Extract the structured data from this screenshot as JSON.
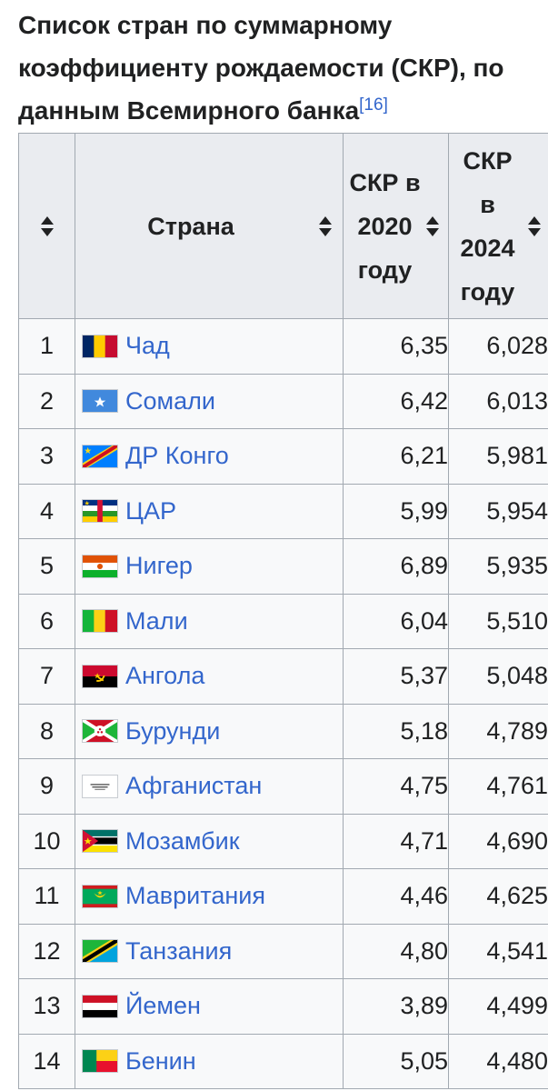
{
  "caption": {
    "title": "Список стран по суммарному коэффициенту рождаемости (СКР), по данным Всемирного банка",
    "ref": "[16]"
  },
  "table": {
    "headers": {
      "rank": "",
      "country": "Страна",
      "tfr2020": "СКР в 2020 году",
      "tfr2024": "СКР в 2024 году"
    },
    "rows": [
      {
        "rank": "1",
        "country": "Чад",
        "flag": "chad-flag",
        "tfr2020": "6,35",
        "tfr2024": "6,028"
      },
      {
        "rank": "2",
        "country": "Сомали",
        "flag": "somalia-flag",
        "tfr2020": "6,42",
        "tfr2024": "6,013"
      },
      {
        "rank": "3",
        "country": "ДР Конго",
        "flag": "dr-congo-flag",
        "tfr2020": "6,21",
        "tfr2024": "5,981"
      },
      {
        "rank": "4",
        "country": "ЦАР",
        "flag": "car-flag",
        "tfr2020": "5,99",
        "tfr2024": "5,954"
      },
      {
        "rank": "5",
        "country": "Нигер",
        "flag": "niger-flag",
        "tfr2020": "6,89",
        "tfr2024": "5,935"
      },
      {
        "rank": "6",
        "country": "Мали",
        "flag": "mali-flag",
        "tfr2020": "6,04",
        "tfr2024": "5,510"
      },
      {
        "rank": "7",
        "country": "Ангола",
        "flag": "angola-flag",
        "tfr2020": "5,37",
        "tfr2024": "5,048"
      },
      {
        "rank": "8",
        "country": "Бурунди",
        "flag": "burundi-flag",
        "tfr2020": "5,18",
        "tfr2024": "4,789"
      },
      {
        "rank": "9",
        "country": "Афганистан",
        "flag": "afghanistan-flag",
        "tfr2020": "4,75",
        "tfr2024": "4,761"
      },
      {
        "rank": "10",
        "country": "Мозамбик",
        "flag": "mozambique-flag",
        "tfr2020": "4,71",
        "tfr2024": "4,690"
      },
      {
        "rank": "11",
        "country": "Мавритания",
        "flag": "mauritania-flag",
        "tfr2020": "4,46",
        "tfr2024": "4,625"
      },
      {
        "rank": "12",
        "country": "Танзания",
        "flag": "tanzania-flag",
        "tfr2020": "4,80",
        "tfr2024": "4,541"
      },
      {
        "rank": "13",
        "country": "Йемен",
        "flag": "yemen-flag",
        "tfr2020": "3,89",
        "tfr2024": "4,499"
      },
      {
        "rank": "14",
        "country": "Бенин",
        "flag": "benin-flag",
        "tfr2020": "5,05",
        "tfr2024": "4,480"
      }
    ]
  },
  "colors": {
    "link": "#3366cc",
    "header_bg": "#eaecf0",
    "cell_bg": "#f8f9fa",
    "border": "#a2a9b1"
  }
}
